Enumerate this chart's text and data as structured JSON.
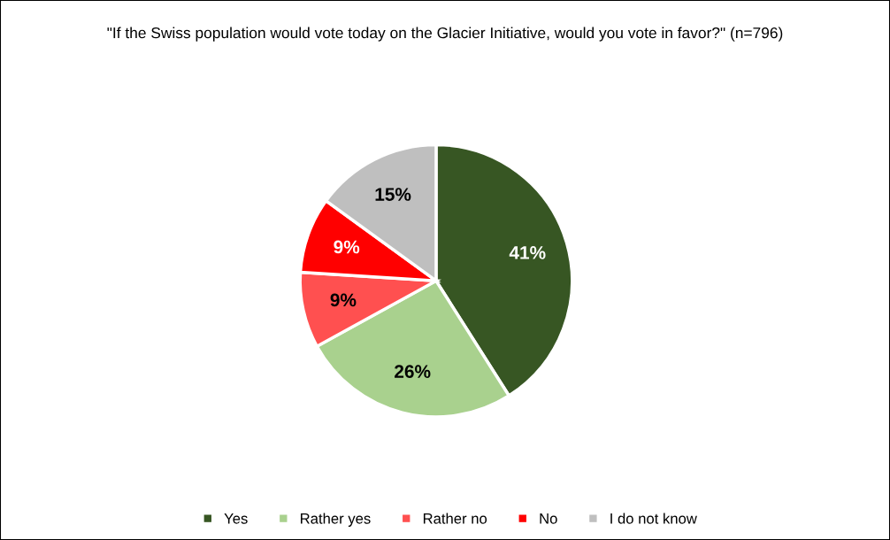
{
  "chart_data": {
    "type": "pie",
    "title": "\"If the Swiss population would vote today on the Glacier Initiative, would you vote in favor?\" (n=796)",
    "categories": [
      "Yes",
      "Rather yes",
      "Rather no",
      "No",
      "I do not know"
    ],
    "values": [
      41,
      26,
      9,
      9,
      15
    ],
    "value_labels": [
      "41%",
      "26%",
      "9%",
      "9%",
      "15%"
    ],
    "colors": [
      "#375623",
      "#a9d18e",
      "#ff5050",
      "#ff0000",
      "#bfbfbf"
    ],
    "legend": "bottom"
  }
}
